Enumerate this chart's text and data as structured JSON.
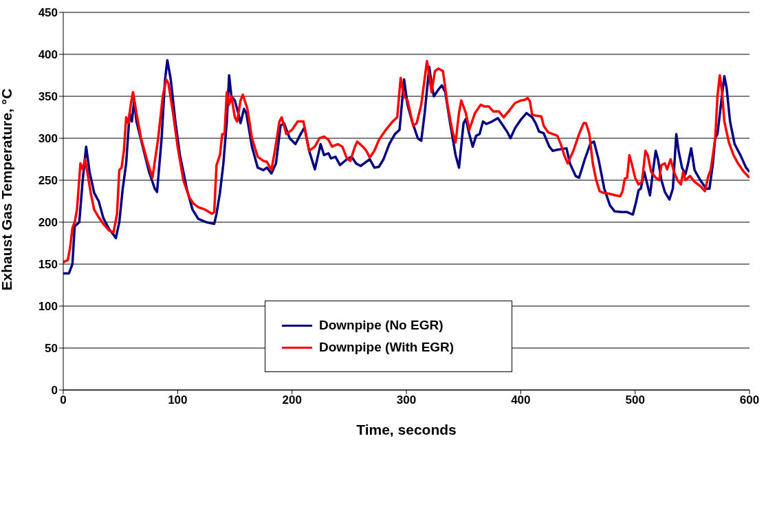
{
  "chart_data": {
    "type": "line",
    "xlabel": "Time, seconds",
    "ylabel": "Exhaust Gas Temperature, °C",
    "xlim": [
      0,
      600
    ],
    "xticks": [
      0,
      100,
      200,
      300,
      400,
      500,
      600
    ],
    "ylim": [
      0,
      450
    ],
    "yticks": [
      0,
      50,
      100,
      150,
      200,
      250,
      300,
      350,
      400,
      450
    ],
    "grid": "y",
    "legend": "center",
    "marker": "none",
    "line_style": "solid",
    "series": [
      {
        "name": "Downpipe (No EGR)",
        "color": "#000080",
        "x": [
          0,
          5,
          8,
          10,
          14,
          17,
          20,
          23,
          27,
          31,
          35,
          40,
          44,
          46,
          49,
          52,
          55,
          58,
          60,
          62,
          64,
          75,
          80,
          82,
          86,
          89,
          91,
          94,
          98,
          102,
          108,
          113,
          118,
          125,
          132,
          134,
          137,
          140,
          143,
          145,
          147,
          150,
          153,
          155,
          158,
          160,
          165,
          170,
          175,
          178,
          182,
          186,
          190,
          193,
          198,
          203,
          208,
          211,
          215,
          220,
          225,
          228,
          232,
          234,
          238,
          242,
          248,
          252,
          256,
          260,
          265,
          268,
          272,
          276,
          280,
          285,
          290,
          294,
          298,
          301,
          305,
          310,
          313,
          316,
          320,
          322,
          324,
          328,
          331,
          334,
          338,
          343,
          346,
          350,
          352,
          355,
          358,
          361,
          364,
          367,
          370,
          375,
          380,
          383,
          388,
          391,
          395,
          400,
          405,
          410,
          413,
          416,
          420,
          425,
          428,
          431,
          435,
          440,
          443,
          448,
          451,
          456,
          461,
          464,
          468,
          473,
          478,
          482,
          488,
          493,
          498,
          501,
          503,
          505,
          508,
          511,
          513,
          516,
          518,
          520,
          523,
          526,
          530,
          533,
          536,
          538,
          541,
          544,
          546,
          549,
          552,
          557,
          562,
          565,
          568,
          570,
          572,
          575,
          578,
          580,
          583,
          587,
          592,
          597,
          600
        ],
        "values": [
          139,
          139,
          150,
          195,
          200,
          250,
          290,
          260,
          235,
          225,
          205,
          192,
          185,
          181,
          200,
          240,
          270,
          330,
          320,
          345,
          320,
          260,
          240,
          236,
          300,
          370,
          393,
          370,
          320,
          280,
          240,
          215,
          204,
          200,
          198,
          210,
          235,
          270,
          320,
          375,
          350,
          345,
          330,
          318,
          335,
          330,
          290,
          265,
          262,
          265,
          258,
          270,
          315,
          318,
          300,
          293,
          306,
          313,
          285,
          263,
          293,
          280,
          282,
          276,
          278,
          268,
          275,
          278,
          270,
          267,
          272,
          275,
          265,
          266,
          275,
          293,
          305,
          310,
          370,
          340,
          320,
          300,
          297,
          330,
          385,
          365,
          350,
          358,
          363,
          355,
          320,
          280,
          265,
          318,
          323,
          305,
          290,
          303,
          305,
          320,
          317,
          320,
          324,
          318,
          308,
          300,
          312,
          322,
          330,
          325,
          318,
          308,
          306,
          290,
          285,
          286,
          287,
          288,
          270,
          255,
          253,
          275,
          294,
          296,
          275,
          240,
          220,
          213,
          212,
          212,
          209,
          225,
          238,
          240,
          260,
          243,
          232,
          265,
          285,
          275,
          250,
          236,
          227,
          240,
          305,
          285,
          265,
          257,
          268,
          288,
          262,
          250,
          240,
          240,
          270,
          300,
          305,
          340,
          374,
          360,
          320,
          293,
          280,
          265,
          260
        ]
      },
      {
        "name": "Downpipe (With EGR)",
        "color": "#ff0000",
        "x": [
          0,
          4,
          6,
          8,
          10,
          12,
          15,
          17,
          19,
          21,
          24,
          27,
          30,
          35,
          40,
          44,
          47,
          49,
          51,
          53,
          55,
          57,
          59,
          61,
          64,
          68,
          73,
          78,
          83,
          87,
          90,
          92,
          96,
          100,
          105,
          110,
          114,
          118,
          124,
          130,
          132,
          134,
          137,
          139,
          141,
          143,
          145,
          147,
          150,
          152,
          155,
          157,
          161,
          165,
          170,
          175,
          178,
          182,
          185,
          189,
          191,
          195,
          200,
          205,
          210,
          212,
          215,
          220,
          224,
          228,
          232,
          235,
          240,
          244,
          248,
          251,
          255,
          257,
          262,
          265,
          268,
          272,
          276,
          282,
          288,
          292,
          295,
          298,
          301,
          306,
          309,
          313,
          318,
          320,
          322,
          325,
          328,
          332,
          336,
          340,
          343,
          346,
          348,
          352,
          355,
          360,
          365,
          368,
          372,
          376,
          381,
          385,
          390,
          395,
          400,
          404,
          406,
          408,
          410,
          413,
          418,
          420,
          424,
          428,
          432,
          435,
          438,
          441,
          446,
          451,
          455,
          457,
          460,
          463,
          466,
          469,
          472,
          477,
          483,
          487,
          489,
          491,
          493,
          495,
          497,
          500,
          503,
          506,
          509,
          511,
          514,
          518,
          521,
          523,
          526,
          528,
          531,
          534,
          537,
          540,
          542,
          544,
          548,
          552,
          557,
          561,
          564,
          566,
          568,
          570,
          572,
          574,
          576,
          578,
          582,
          586,
          590,
          595,
          600
        ],
        "values": [
          152,
          155,
          170,
          193,
          200,
          215,
          270,
          263,
          275,
          260,
          235,
          215,
          208,
          198,
          190,
          188,
          210,
          262,
          265,
          285,
          325,
          318,
          340,
          355,
          330,
          300,
          275,
          253,
          300,
          350,
          370,
          365,
          330,
          290,
          250,
          230,
          222,
          218,
          215,
          210,
          212,
          268,
          280,
          305,
          305,
          355,
          340,
          350,
          325,
          320,
          345,
          352,
          335,
          300,
          278,
          273,
          272,
          262,
          285,
          320,
          325,
          305,
          310,
          320,
          320,
          305,
          285,
          290,
          300,
          302,
          298,
          290,
          293,
          290,
          276,
          273,
          290,
          296,
          290,
          285,
          277,
          285,
          298,
          310,
          320,
          325,
          372,
          350,
          345,
          315,
          318,
          340,
          392,
          375,
          355,
          380,
          383,
          380,
          340,
          310,
          295,
          330,
          345,
          330,
          310,
          330,
          340,
          338,
          338,
          332,
          332,
          325,
          333,
          342,
          345,
          346,
          348,
          344,
          328,
          327,
          326,
          315,
          307,
          305,
          303,
          293,
          280,
          270,
          285,
          305,
          318,
          318,
          305,
          270,
          250,
          237,
          235,
          234,
          232,
          231,
          237,
          252,
          253,
          280,
          270,
          253,
          245,
          248,
          285,
          280,
          260,
          253,
          250,
          268,
          270,
          263,
          275,
          260,
          250,
          245,
          260,
          250,
          255,
          248,
          243,
          237,
          255,
          262,
          280,
          300,
          350,
          375,
          355,
          320,
          295,
          280,
          270,
          260,
          253
        ]
      }
    ]
  }
}
